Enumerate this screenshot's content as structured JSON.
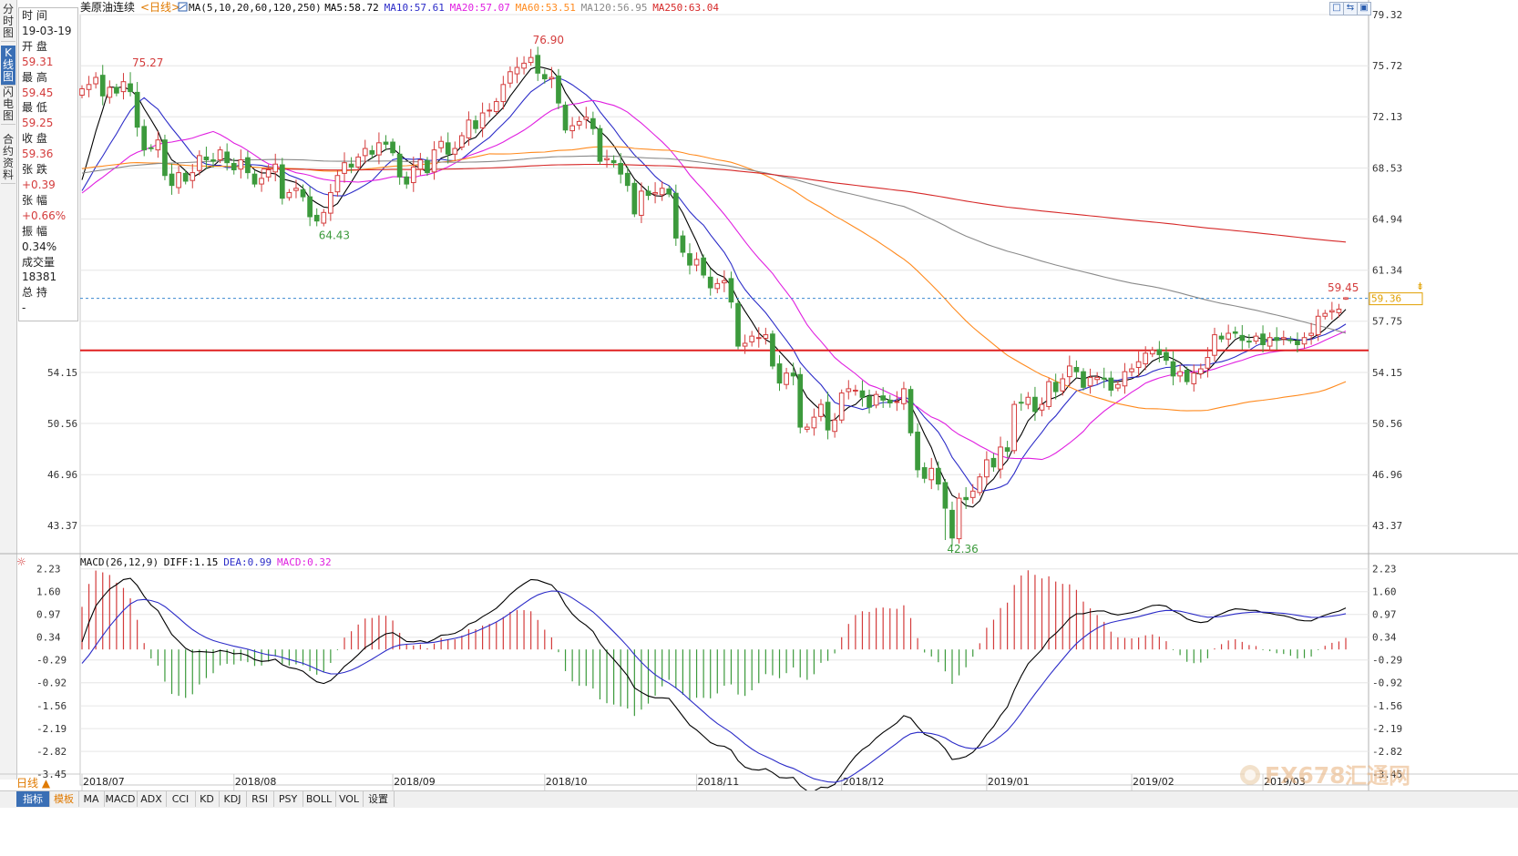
{
  "left_tabs": [
    {
      "label": "分时图",
      "active": false
    },
    {
      "label": "K线图",
      "active": true
    },
    {
      "label": "闪电图",
      "active": false
    },
    {
      "label": "合约资料",
      "active": false
    }
  ],
  "info_panel": [
    {
      "label": "时 间",
      "value": "19-03-19",
      "value_class": ""
    },
    {
      "label": "开 盘",
      "value": "59.31",
      "value_class": "up"
    },
    {
      "label": "最 高",
      "value": "59.45",
      "value_class": "up"
    },
    {
      "label": "最 低",
      "value": "59.25",
      "value_class": "up"
    },
    {
      "label": "收 盘",
      "value": "59.36",
      "value_class": "up"
    },
    {
      "label": "张 跌",
      "value": "+0.39",
      "value_class": "up"
    },
    {
      "label": "张 幅",
      "value": "+0.66%",
      "value_class": "up"
    },
    {
      "label": "振 幅",
      "value": "0.34%",
      "value_class": ""
    },
    {
      "label": "成交量",
      "value": "18381",
      "value_class": ""
    },
    {
      "label": "总 持",
      "value": "-",
      "value_class": ""
    }
  ],
  "header": {
    "symbol": "美原油连续",
    "period_tag": "<日线>",
    "ma_label": "MA(5,10,20,60,120,250)",
    "ma_values": [
      {
        "text": "MA5:58.72",
        "color": "#000000"
      },
      {
        "text": "MA10:57.61",
        "color": "#2c2cc8"
      },
      {
        "text": "MA20:57.07",
        "color": "#e020e0"
      },
      {
        "text": "MA60:53.51",
        "color": "#ff8a1e"
      },
      {
        "text": "MA120:56.95",
        "color": "#8a8a8a"
      },
      {
        "text": "MA250:63.04",
        "color": "#d62828"
      }
    ],
    "window_buttons": [
      "□",
      "⇆",
      "▣"
    ]
  },
  "macd_header": {
    "label": "MACD(26,12,9)",
    "diff": "DIFF:1.15",
    "dea": "DEA:0.99",
    "macd": "MACD:0.32",
    "colors": {
      "diff": "#000000",
      "dea": "#2c2cc8",
      "macd": "#e020e0"
    }
  },
  "chart_data": [
    {
      "type": "candlestick",
      "title": "美原油连续 <日线>",
      "y_ticks_right": [
        79.32,
        75.72,
        72.13,
        68.53,
        64.94,
        61.34,
        57.75,
        54.15,
        50.56,
        46.96,
        43.37
      ],
      "y_ticks_left": [
        54.15,
        50.56,
        46.96,
        43.37
      ],
      "ylim": [
        41.4,
        79.32
      ],
      "x_labels": [
        "2018/07",
        "2018/08",
        "2018/09",
        "2018/10",
        "2018/11",
        "2018/12",
        "2019/01",
        "2019/02",
        "2019/03"
      ],
      "annotations": [
        {
          "text": "75.27",
          "type": "high"
        },
        {
          "text": "76.90",
          "type": "high"
        },
        {
          "text": "64.43",
          "type": "low"
        },
        {
          "text": "42.36",
          "type": "low"
        },
        {
          "text": "59.45",
          "type": "high"
        }
      ],
      "current_price": 59.36,
      "current_price_label": "59.36",
      "support_line": 55.7,
      "close_series": [
        74.1,
        74.4,
        74.9,
        73.6,
        74.2,
        73.8,
        74.6,
        73.9,
        71.4,
        69.8,
        69.9,
        70.5,
        68.0,
        67.3,
        68.2,
        67.6,
        68.2,
        69.4,
        69.1,
        69.0,
        69.8,
        68.9,
        68.4,
        69.1,
        68.2,
        67.4,
        67.8,
        68.4,
        68.8,
        66.4,
        66.8,
        67.1,
        66.5,
        65.1,
        64.8,
        65.4,
        66.8,
        68.0,
        68.9,
        68.6,
        69.3,
        69.9,
        69.5,
        70.3,
        70.2,
        69.6,
        67.9,
        67.4,
        68.6,
        69.1,
        68.2,
        69.8,
        70.4,
        69.5,
        69.9,
        70.8,
        71.9,
        71.3,
        72.4,
        72.6,
        73.2,
        74.4,
        75.3,
        75.6,
        75.9,
        76.3,
        75.2,
        74.8,
        74.9,
        73.1,
        71.2,
        71.5,
        71.8,
        72.1,
        71.3,
        69.0,
        69.2,
        68.9,
        68.1,
        67.3,
        65.3,
        66.9,
        66.6,
        66.8,
        67.1,
        66.7,
        63.6,
        62.6,
        61.7,
        62.1,
        61.0,
        60.1,
        60.4,
        60.6,
        59.1,
        56.0,
        56.2,
        56.7,
        56.6,
        56.8,
        54.6,
        53.4,
        54.1,
        53.9,
        50.3,
        50.3,
        51.0,
        51.9,
        50.1,
        50.8,
        52.7,
        53.0,
        52.9,
        52.4,
        51.7,
        52.6,
        52.2,
        52.0,
        52.1,
        53.0,
        49.9,
        47.3,
        46.7,
        47.4,
        46.3,
        44.6,
        42.5,
        45.3,
        45.2,
        45.8,
        46.8,
        48.0,
        47.5,
        48.9,
        48.6,
        51.9,
        52.0,
        52.4,
        51.4,
        51.9,
        53.5,
        52.8,
        53.7,
        54.6,
        54.2,
        53.1,
        53.8,
        53.8,
        53.7,
        52.9,
        53.3,
        54.2,
        54.4,
        54.9,
        55.5,
        55.7,
        55.4,
        55.0,
        53.9,
        54.2,
        53.5,
        54.1,
        54.4,
        55.2,
        56.8,
        56.5,
        56.9,
        56.9,
        56.4,
        56.3,
        56.7,
        56.1,
        56.6,
        56.4,
        56.6,
        56.4,
        56.1,
        56.6,
        56.9,
        58.1,
        58.3,
        58.5,
        58.6,
        59.4
      ]
    },
    {
      "type": "bar+line",
      "title": "MACD(26,12,9)",
      "y_ticks_right": [
        2.23,
        1.6,
        0.97,
        0.34,
        -0.29,
        -0.92,
        -1.56,
        -2.19,
        -2.82,
        -3.45
      ],
      "y_ticks_left": [
        2.23,
        1.6,
        0.97,
        0.34,
        -0.29,
        -0.92,
        -1.56,
        -2.19,
        -2.82,
        -3.45
      ],
      "ylim": [
        -3.75,
        2.55
      ],
      "last_values": {
        "DIFF": 1.15,
        "DEA": 0.99,
        "MACD": 0.32
      }
    }
  ],
  "bottom_tabs": [
    {
      "label": "指标",
      "style": "active"
    },
    {
      "label": "模板",
      "style": "orange"
    },
    {
      "label": "MA",
      "style": ""
    },
    {
      "label": "MACD",
      "style": ""
    },
    {
      "label": "ADX",
      "style": ""
    },
    {
      "label": "CCI",
      "style": ""
    },
    {
      "label": "KD",
      "style": ""
    },
    {
      "label": "KDJ",
      "style": ""
    },
    {
      "label": "RSI",
      "style": ""
    },
    {
      "label": "PSY",
      "style": ""
    },
    {
      "label": "BOLL",
      "style": ""
    },
    {
      "label": "VOL",
      "style": ""
    },
    {
      "label": "设置",
      "style": ""
    }
  ],
  "period_selector": "日线 ▲",
  "watermark": {
    "text1": "FX678",
    "text2": "汇通网"
  },
  "colors": {
    "up": "#d43c3c",
    "down": "#3c9a3c",
    "grid": "#e6e6e6",
    "support": "#e02020",
    "price_line": "#3b8ad0",
    "accent_blue": "#3a6fb5"
  }
}
